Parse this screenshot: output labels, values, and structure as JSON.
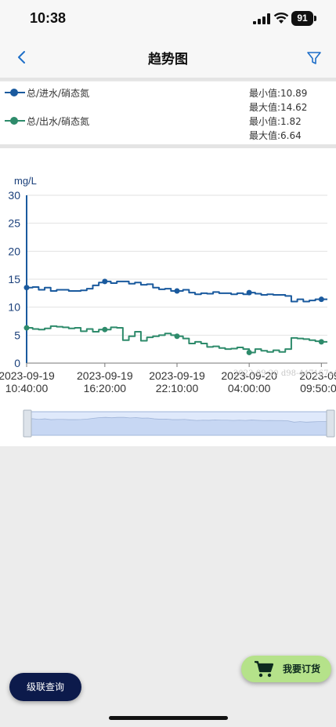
{
  "status_bar": {
    "time": "10:38",
    "battery": "91"
  },
  "nav": {
    "title": "趋势图",
    "back_icon": "chevron-left-icon",
    "filter_icon": "funnel-filter-icon"
  },
  "legend": {
    "items": [
      {
        "label": "总/进水/硝态氮",
        "color": "#1a5a9e",
        "min": "最小值:10.89",
        "max": "最大值:14.62"
      },
      {
        "label": "总/出水/硝态氮",
        "color": "#2e8b6b",
        "min": "最小值:1.82",
        "max": "最大值:6.64"
      }
    ]
  },
  "chart_data": {
    "type": "line",
    "ylabel": "mg/L",
    "ylim": [
      0,
      30
    ],
    "yticks": [
      "0",
      "5",
      "10",
      "15",
      "20",
      "25",
      "30"
    ],
    "xticks": [
      {
        "date": "2023-09-19",
        "time": "10:40:00"
      },
      {
        "date": "2023-09-19",
        "time": "16:20:00"
      },
      {
        "date": "2023-09-19",
        "time": "22:10:00"
      },
      {
        "date": "2023-09-20",
        "time": "04:00:00"
      },
      {
        "date": "2023-09-",
        "time": "09:50:00"
      }
    ],
    "watermark": "2023-09-20 d98-447167e4",
    "grid": true,
    "x": [
      "2023-09-19 10:40",
      "2023-09-19 11:00",
      "2023-09-19 11:20",
      "2023-09-19 11:40",
      "2023-09-19 12:00",
      "2023-09-19 12:30",
      "2023-09-19 13:00",
      "2023-09-19 13:30",
      "2023-09-19 14:00",
      "2023-09-19 14:30",
      "2023-09-19 15:00",
      "2023-09-19 15:30",
      "2023-09-19 16:00",
      "2023-09-19 16:20",
      "2023-09-19 16:50",
      "2023-09-19 17:20",
      "2023-09-19 17:50",
      "2023-09-19 18:20",
      "2023-09-19 18:50",
      "2023-09-19 19:20",
      "2023-09-19 19:50",
      "2023-09-19 20:20",
      "2023-09-19 20:50",
      "2023-09-19 21:20",
      "2023-09-19 21:50",
      "2023-09-19 22:10",
      "2023-09-19 22:40",
      "2023-09-19 23:10",
      "2023-09-19 23:40",
      "2023-09-20 00:10",
      "2023-09-20 00:40",
      "2023-09-20 01:10",
      "2023-09-20 01:40",
      "2023-09-20 02:10",
      "2023-09-20 02:40",
      "2023-09-20 03:10",
      "2023-09-20 03:40",
      "2023-09-20 04:00",
      "2023-09-20 04:30",
      "2023-09-20 05:00",
      "2023-09-20 05:30",
      "2023-09-20 06:00",
      "2023-09-20 06:30",
      "2023-09-20 07:00",
      "2023-09-20 07:30",
      "2023-09-20 08:00",
      "2023-09-20 08:30",
      "2023-09-20 09:00",
      "2023-09-20 09:30",
      "2023-09-20 09:50",
      "2023-09-20 10:10"
    ],
    "series": [
      {
        "name": "总/进水/硝态氮",
        "color": "#1a5a9e",
        "values": [
          13.5,
          13.6,
          13.1,
          13.5,
          12.9,
          13.1,
          13.1,
          12.9,
          12.9,
          13.0,
          13.3,
          13.9,
          14.4,
          14.6,
          14.3,
          14.6,
          14.6,
          14.2,
          14.4,
          14.0,
          14.1,
          13.5,
          13.2,
          13.3,
          12.9,
          12.9,
          13.1,
          12.6,
          12.3,
          12.5,
          12.4,
          12.7,
          12.5,
          12.5,
          12.3,
          12.5,
          12.3,
          12.6,
          12.4,
          12.2,
          12.3,
          12.2,
          12.2,
          12.0,
          11.0,
          11.4,
          11.0,
          11.2,
          11.4,
          11.4,
          11.4
        ],
        "markers": [
          0,
          13,
          25,
          37,
          49
        ]
      },
      {
        "name": "总/出水/硝态氮",
        "color": "#2e8b6b",
        "values": [
          6.3,
          6.1,
          6.0,
          6.2,
          6.6,
          6.5,
          6.4,
          6.2,
          6.3,
          5.7,
          6.1,
          5.6,
          6.0,
          6.0,
          6.4,
          6.3,
          4.1,
          4.8,
          5.6,
          4.0,
          4.6,
          4.8,
          5.0,
          5.3,
          5.0,
          4.8,
          4.4,
          3.5,
          3.8,
          3.5,
          2.9,
          3.0,
          2.7,
          2.5,
          2.6,
          2.8,
          2.5,
          1.9,
          2.5,
          2.2,
          2.0,
          2.3,
          2.0,
          2.5,
          4.5,
          4.4,
          4.3,
          4.1,
          3.9,
          3.8,
          3.8
        ],
        "markers": [
          0,
          13,
          25,
          37,
          49
        ]
      }
    ]
  },
  "buttons": {
    "cascade_query": "级联查询",
    "order": "我要订货",
    "cart_icon": "shopping-cart-icon"
  }
}
